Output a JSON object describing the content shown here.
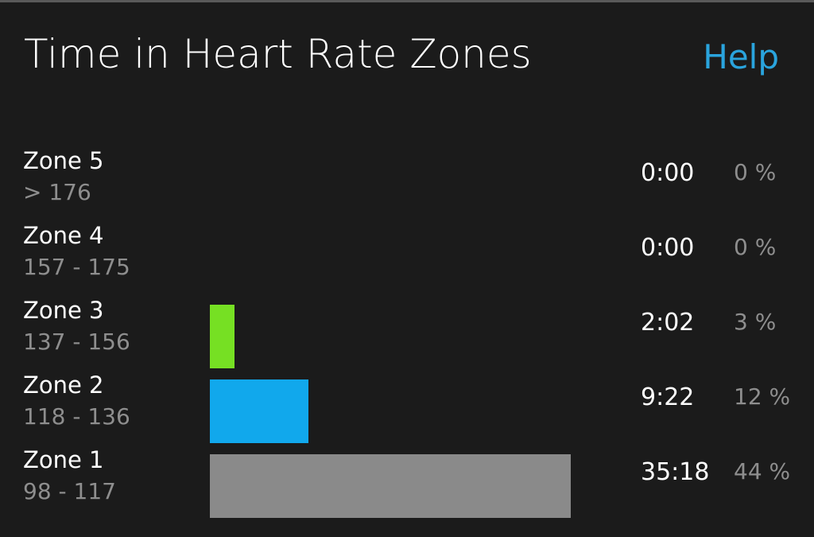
{
  "header": {
    "title": "Time in Heart Rate Zones",
    "help_label": "Help"
  },
  "zones": [
    {
      "name": "Zone 5",
      "range": "> 176",
      "time": "0:00",
      "percent": "0 %",
      "fraction": 0,
      "color": "#76e023"
    },
    {
      "name": "Zone 4",
      "range": "157 - 175",
      "time": "0:00",
      "percent": "0 %",
      "fraction": 0,
      "color": "#76e023"
    },
    {
      "name": "Zone 3",
      "range": "137 - 156",
      "time": "2:02",
      "percent": "3 %",
      "fraction": 0.03,
      "color": "#76e023"
    },
    {
      "name": "Zone 2",
      "range": "118 - 136",
      "time": "9:22",
      "percent": "12 %",
      "fraction": 0.12,
      "color": "#11a8ec"
    },
    {
      "name": "Zone 1",
      "range": "98 - 117",
      "time": "35:18",
      "percent": "44 %",
      "fraction": 0.44,
      "color": "#8a8a8a"
    }
  ],
  "colors": {
    "background": "#1b1b1b",
    "accent": "#2aa4dd",
    "secondary_text": "#8e8e8e"
  }
}
